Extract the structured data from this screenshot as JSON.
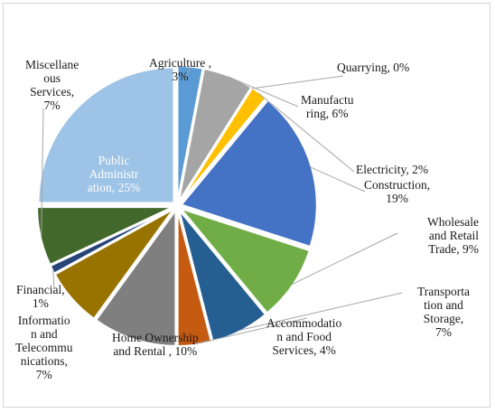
{
  "chart_data": {
    "type": "pie",
    "title": "",
    "slices": [
      {
        "key": "agriculture",
        "label": "Agriculture ,\n3%",
        "value": 3,
        "color": "#5b9bd5"
      },
      {
        "key": "manufacturing",
        "label": "Manufactu\nring, 6%",
        "value": 6,
        "color": "#a5a5a5"
      },
      {
        "key": "quarrying",
        "label": "Quarrying, 0%",
        "value": 0,
        "color": "#ed7d31"
      },
      {
        "key": "electricity",
        "label": "Electricity,  2%",
        "value": 2,
        "color": "#ffc000"
      },
      {
        "key": "construction",
        "label": "Construction,\n19%",
        "value": 19,
        "color": "#4472c4"
      },
      {
        "key": "wholesale",
        "label": "Wholesale\nand Retail\nTrade, 9%",
        "value": 9,
        "color": "#70ad47"
      },
      {
        "key": "transportation",
        "label": "Transporta\ntion and\nStorage,\n7%",
        "value": 7,
        "color": "#255e91"
      },
      {
        "key": "accommodation",
        "label": "Accommodatio\nn and Food\nServices, 4%",
        "value": 4,
        "color": "#c55a11"
      },
      {
        "key": "home_ownership",
        "label": "Home Ownership\nand Rental , 10%",
        "value": 10,
        "color": "#7f7f7f"
      },
      {
        "key": "information",
        "label": "Informatio\nn and\nTelecommu\nnications,\n7%",
        "value": 7,
        "color": "#997300"
      },
      {
        "key": "financial",
        "label": "Financial,\n1%",
        "value": 1,
        "color": "#264478"
      },
      {
        "key": "misc_services",
        "label": "Miscellane\nous\nServices,\n7%",
        "value": 7,
        "color": "#43682b"
      },
      {
        "key": "public_admin",
        "label": "Public\nAdministr\nation, 25%",
        "value": 25,
        "color": "#9dc3e6"
      }
    ]
  }
}
